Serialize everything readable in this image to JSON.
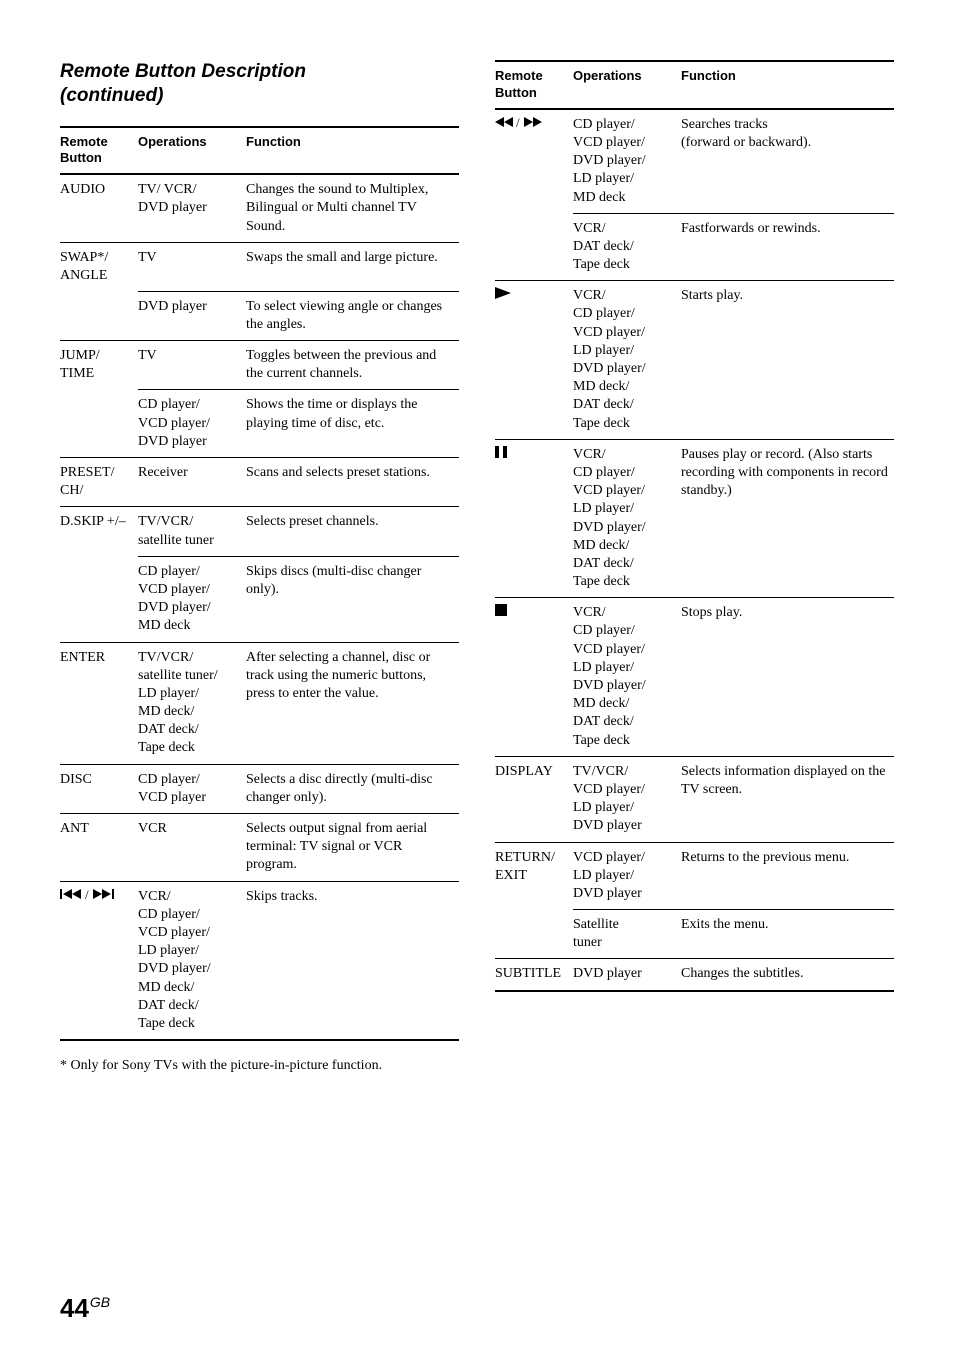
{
  "title_line1": "Remote Button Description",
  "title_line2": "(continued)",
  "headers": {
    "rb": "Remote Button",
    "op": "Operations",
    "fn": "Function"
  },
  "footnote": "*  Only for Sony TVs with the picture-in-picture function.",
  "page_number": "44",
  "page_suffix": "GB",
  "left": [
    {
      "rb": "AUDIO",
      "op": "TV/ VCR/\nDVD player",
      "fn": "Changes the sound to Multiplex, Bilingual or Multi channel TV Sound.",
      "top": "thick"
    },
    {
      "rb": "SWAP*/\nANGLE",
      "op": "TV",
      "fn": "Swaps the small and large picture.",
      "top": "thin"
    },
    {
      "rb": "",
      "op": "DVD player",
      "fn": "To select viewing angle or changes the angles.",
      "top": "thin"
    },
    {
      "rb": "JUMP/\nTIME",
      "op": "TV",
      "fn": "Toggles between the previous and the current channels.",
      "top": "thin"
    },
    {
      "rb": "",
      "op": "CD player/\nVCD player/\nDVD player",
      "fn": "Shows the time or displays the playing time of disc, etc.",
      "top": "thin"
    },
    {
      "rb": "PRESET/\nCH/",
      "op": "Receiver",
      "fn": "Scans and selects preset stations.",
      "top": "thin"
    },
    {
      "rb": "D.SKIP +/–",
      "op": "TV/VCR/\nsatellite tuner",
      "fn": "Selects preset channels.",
      "top": "thin"
    },
    {
      "rb": "",
      "op": "CD player/\nVCD player/\nDVD player/\nMD deck",
      "fn": "Skips discs (multi-disc changer only).",
      "top": "thin"
    },
    {
      "rb": "ENTER",
      "op": "TV/VCR/\nsatellite tuner/\nLD player/\nMD deck/\nDAT deck/\nTape deck",
      "fn": "After selecting a channel, disc or track using the numeric buttons, press to enter the value.",
      "top": "thin"
    },
    {
      "rb": "DISC",
      "op": "CD player/\nVCD player",
      "fn": "Selects a disc directly (multi-disc changer only).",
      "top": "thin"
    },
    {
      "rb": "ANT",
      "op": "VCR",
      "fn": "Selects output signal from aerial terminal: TV signal or VCR program.",
      "top": "thin"
    },
    {
      "icon": "prev-next",
      "op": "VCR/\nCD player/\nVCD player/\nLD player/\nDVD player/\nMD deck/\nDAT deck/\nTape deck",
      "fn": "Skips tracks.",
      "top": "thin",
      "bottom": "thick"
    }
  ],
  "right": [
    {
      "icon": "rew-ff",
      "op": "CD player/\nVCD player/\nDVD player/\nLD player/\nMD deck",
      "fn": "Searches tracks\n(forward or backward).",
      "top": "thick"
    },
    {
      "rb": "",
      "op": "VCR/\nDAT deck/\nTape deck",
      "fn": "Fastforwards or rewinds.",
      "top": "thin"
    },
    {
      "icon": "play",
      "op": "VCR/\nCD player/\nVCD player/\nLD player/\nDVD player/\nMD deck/\nDAT deck/\nTape deck",
      "fn": "Starts play.",
      "top": "thin"
    },
    {
      "icon": "pause",
      "op": "VCR/\nCD player/\nVCD player/\nLD player/\nDVD player/\nMD deck/\nDAT deck/\nTape deck",
      "fn": "Pauses play or record. (Also starts recording with components in record standby.)",
      "top": "thin"
    },
    {
      "icon": "stop",
      "op": "VCR/\nCD player/\nVCD player/\nLD player/\nDVD player/\nMD deck/\nDAT deck/\nTape deck",
      "fn": "Stops play.",
      "top": "thin"
    },
    {
      "rb": "DISPLAY",
      "op": "TV/VCR/\nVCD player/\nLD player/\nDVD player",
      "fn": "Selects information displayed on the TV screen.",
      "top": "thin"
    },
    {
      "rb": "RETURN/\nEXIT",
      "op": "VCD player/\nLD player/\nDVD player",
      "fn": "Returns to the previous menu.",
      "top": "thin"
    },
    {
      "rb": "",
      "op": "Satellite\ntuner",
      "fn": "Exits the menu.",
      "top": "thin"
    },
    {
      "rb": "SUBTITLE",
      "op": "DVD player",
      "fn": "Changes the subtitles.",
      "top": "thin",
      "bottom": "thick"
    }
  ]
}
